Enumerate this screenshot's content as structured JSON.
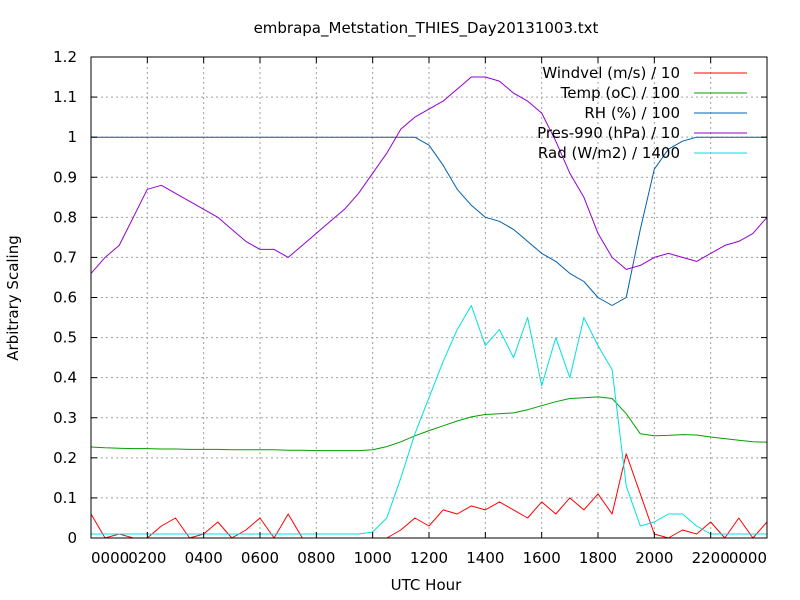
{
  "chart_data": {
    "type": "line",
    "title": "embrapa_Metstation_THIES_Day20131003.txt",
    "xlabel": "UTC Hour",
    "ylabel": "Arbitrary Scaling",
    "xlim": [
      0,
      24
    ],
    "ylim": [
      0,
      1.2
    ],
    "grid": true,
    "legend_position": "top-right",
    "x_ticks": [
      {
        "value": 0,
        "label": "0000"
      },
      {
        "value": 2,
        "label": "0200"
      },
      {
        "value": 4,
        "label": "0400"
      },
      {
        "value": 6,
        "label": "0600"
      },
      {
        "value": 8,
        "label": "0800"
      },
      {
        "value": 10,
        "label": "1000"
      },
      {
        "value": 12,
        "label": "1200"
      },
      {
        "value": 14,
        "label": "1400"
      },
      {
        "value": 16,
        "label": "1600"
      },
      {
        "value": 18,
        "label": "1800"
      },
      {
        "value": 20,
        "label": "2000"
      },
      {
        "value": 22,
        "label": "2200"
      },
      {
        "value": 24,
        "label": "0000"
      }
    ],
    "y_ticks": [
      {
        "value": 0,
        "label": "0"
      },
      {
        "value": 0.1,
        "label": "0.1"
      },
      {
        "value": 0.2,
        "label": "0.2"
      },
      {
        "value": 0.3,
        "label": "0.3"
      },
      {
        "value": 0.4,
        "label": "0.4"
      },
      {
        "value": 0.5,
        "label": "0.5"
      },
      {
        "value": 0.6,
        "label": "0.6"
      },
      {
        "value": 0.7,
        "label": "0.7"
      },
      {
        "value": 0.8,
        "label": "0.8"
      },
      {
        "value": 0.9,
        "label": "0.9"
      },
      {
        "value": 1.0,
        "label": "1"
      },
      {
        "value": 1.1,
        "label": "1.1"
      },
      {
        "value": 1.2,
        "label": "1.2"
      }
    ],
    "x": [
      0,
      0.5,
      1,
      1.5,
      2,
      2.5,
      3,
      3.5,
      4,
      4.5,
      5,
      5.5,
      6,
      6.5,
      7,
      7.5,
      8,
      8.5,
      9,
      9.5,
      10,
      10.5,
      11,
      11.5,
      12,
      12.5,
      13,
      13.5,
      14,
      14.5,
      15,
      15.5,
      16,
      16.5,
      17,
      17.5,
      18,
      18.5,
      19,
      19.5,
      20,
      20.5,
      21,
      21.5,
      22,
      22.5,
      23,
      23.5,
      24
    ],
    "series": [
      {
        "name": "Windvel (m/s) / 10",
        "color": "#ff0000",
        "values": [
          0.06,
          0.0,
          0.01,
          0.0,
          0.0,
          0.03,
          0.05,
          0.0,
          0.01,
          0.04,
          0.0,
          0.02,
          0.05,
          0.0,
          0.06,
          0.0,
          0.0,
          0.0,
          0.0,
          0.0,
          0.0,
          0.0,
          0.02,
          0.05,
          0.03,
          0.07,
          0.06,
          0.08,
          0.07,
          0.09,
          0.07,
          0.05,
          0.09,
          0.06,
          0.1,
          0.07,
          0.11,
          0.06,
          0.21,
          0.11,
          0.01,
          0.0,
          0.02,
          0.01,
          0.04,
          0.0,
          0.05,
          0.0,
          0.04
        ]
      },
      {
        "name": "Temp (oC) / 100",
        "color": "#00a000",
        "values": [
          0.227,
          0.225,
          0.224,
          0.223,
          0.223,
          0.222,
          0.222,
          0.221,
          0.221,
          0.221,
          0.22,
          0.22,
          0.22,
          0.22,
          0.219,
          0.219,
          0.218,
          0.218,
          0.218,
          0.218,
          0.22,
          0.228,
          0.24,
          0.255,
          0.268,
          0.28,
          0.292,
          0.302,
          0.308,
          0.31,
          0.312,
          0.32,
          0.33,
          0.34,
          0.348,
          0.35,
          0.352,
          0.348,
          0.31,
          0.26,
          0.255,
          0.256,
          0.258,
          0.257,
          0.252,
          0.248,
          0.244,
          0.24,
          0.239
        ]
      },
      {
        "name": "RH (%) / 100",
        "color": "#0060ad",
        "values": [
          1.0,
          1.0,
          1.0,
          1.0,
          1.0,
          1.0,
          1.0,
          1.0,
          1.0,
          1.0,
          1.0,
          1.0,
          1.0,
          1.0,
          1.0,
          1.0,
          1.0,
          1.0,
          1.0,
          1.0,
          1.0,
          1.0,
          1.0,
          1.0,
          0.98,
          0.93,
          0.87,
          0.83,
          0.8,
          0.79,
          0.77,
          0.74,
          0.71,
          0.69,
          0.66,
          0.64,
          0.6,
          0.58,
          0.6,
          0.77,
          0.92,
          0.97,
          0.99,
          1.0,
          1.0,
          1.0,
          1.0,
          1.0,
          1.0
        ]
      },
      {
        "name": "Pres-990 (hPa) / 10",
        "color": "#9400d3",
        "values": [
          0.66,
          0.7,
          0.73,
          0.8,
          0.87,
          0.88,
          0.86,
          0.84,
          0.82,
          0.8,
          0.77,
          0.74,
          0.72,
          0.72,
          0.7,
          0.73,
          0.76,
          0.79,
          0.82,
          0.86,
          0.91,
          0.96,
          1.02,
          1.05,
          1.07,
          1.09,
          1.12,
          1.15,
          1.15,
          1.14,
          1.11,
          1.09,
          1.06,
          0.99,
          0.91,
          0.85,
          0.76,
          0.7,
          0.67,
          0.68,
          0.7,
          0.71,
          0.7,
          0.69,
          0.71,
          0.73,
          0.74,
          0.76,
          0.8
        ]
      },
      {
        "name": "Rad (W/m2) / 1400",
        "color": "#00e0e0",
        "values": [
          0.01,
          0.01,
          0.01,
          0.01,
          0.01,
          0.01,
          0.01,
          0.01,
          0.01,
          0.01,
          0.01,
          0.01,
          0.01,
          0.01,
          0.01,
          0.01,
          0.01,
          0.01,
          0.01,
          0.01,
          0.015,
          0.05,
          0.15,
          0.26,
          0.35,
          0.44,
          0.52,
          0.58,
          0.48,
          0.52,
          0.45,
          0.55,
          0.38,
          0.5,
          0.4,
          0.55,
          0.48,
          0.42,
          0.13,
          0.03,
          0.04,
          0.06,
          0.06,
          0.03,
          0.01,
          0.01,
          0.01,
          0.01,
          0.01
        ]
      }
    ]
  }
}
